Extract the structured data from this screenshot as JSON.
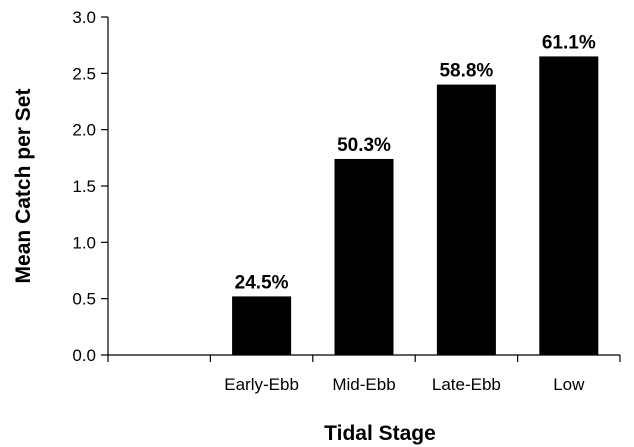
{
  "chart_data": {
    "type": "bar",
    "title": "",
    "xlabel": "Tidal Stage",
    "ylabel": "Mean Catch per Set",
    "categories": [
      "Early-Ebb",
      "Mid-Ebb",
      "Late-Ebb",
      "Low"
    ],
    "values": [
      0.52,
      1.74,
      2.4,
      2.65
    ],
    "data_labels": [
      "24.5%",
      "50.3%",
      "58.8%",
      "61.1%"
    ],
    "ylim": [
      0,
      3.0
    ],
    "yticks": [
      "0.0",
      "0.5",
      "1.0",
      "1.5",
      "2.0",
      "2.5",
      "3.0"
    ],
    "bar_color": "#000000",
    "grid": false,
    "legend": "none"
  }
}
